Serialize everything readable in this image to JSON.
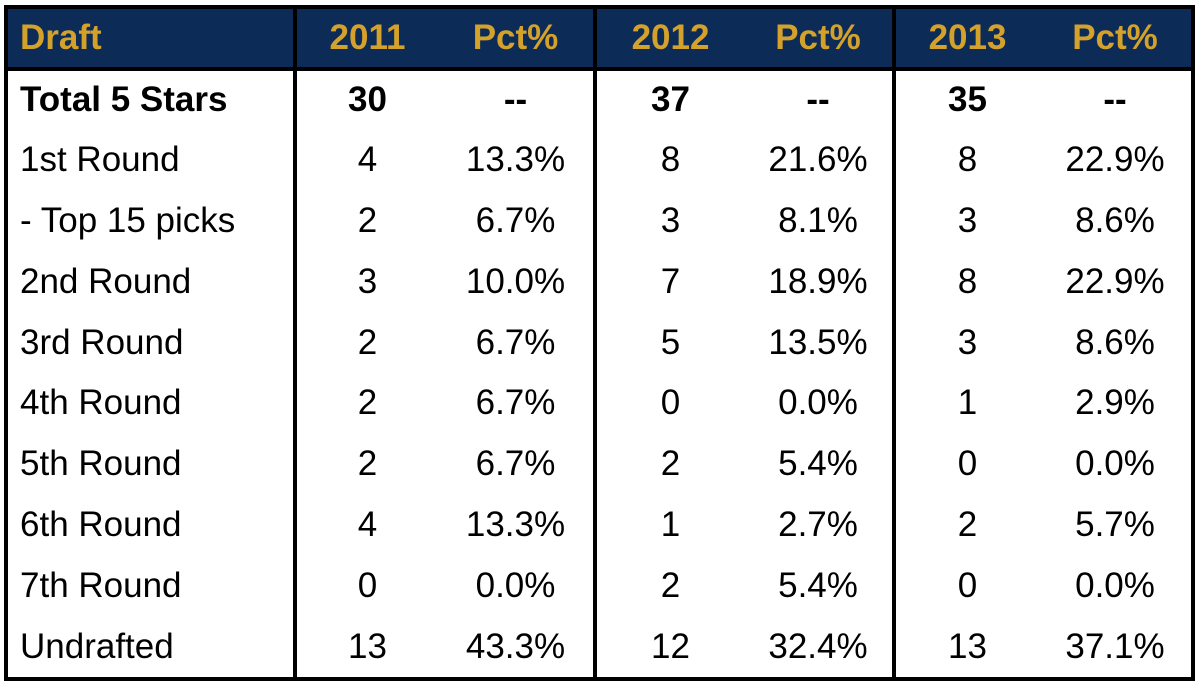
{
  "header": {
    "draft": "Draft",
    "groups": [
      {
        "year": "2011",
        "pct": "Pct%"
      },
      {
        "year": "2012",
        "pct": "Pct%"
      },
      {
        "year": "2013",
        "pct": "Pct%"
      }
    ]
  },
  "rows": [
    {
      "label": "Total 5 Stars",
      "cells": [
        "30",
        "--",
        "37",
        "--",
        "35",
        "--"
      ]
    },
    {
      "label": "1st Round",
      "cells": [
        "4",
        "13.3%",
        "8",
        "21.6%",
        "8",
        "22.9%"
      ]
    },
    {
      "label": "- Top 15 picks",
      "cells": [
        "2",
        "6.7%",
        "3",
        "8.1%",
        "3",
        "8.6%"
      ]
    },
    {
      "label": "2nd Round",
      "cells": [
        "3",
        "10.0%",
        "7",
        "18.9%",
        "8",
        "22.9%"
      ]
    },
    {
      "label": "3rd Round",
      "cells": [
        "2",
        "6.7%",
        "5",
        "13.5%",
        "3",
        "8.6%"
      ]
    },
    {
      "label": "4th Round",
      "cells": [
        "2",
        "6.7%",
        "0",
        "0.0%",
        "1",
        "2.9%"
      ]
    },
    {
      "label": "5th Round",
      "cells": [
        "2",
        "6.7%",
        "2",
        "5.4%",
        "0",
        "0.0%"
      ]
    },
    {
      "label": "6th Round",
      "cells": [
        "4",
        "13.3%",
        "1",
        "2.7%",
        "2",
        "5.7%"
      ]
    },
    {
      "label": "7th Round",
      "cells": [
        "0",
        "0.0%",
        "2",
        "5.4%",
        "0",
        "0.0%"
      ]
    },
    {
      "label": "Undrafted",
      "cells": [
        "13",
        "43.3%",
        "12",
        "32.4%",
        "13",
        "37.1%"
      ]
    }
  ],
  "colors": {
    "header_bg": "#0d2b57",
    "header_text": "#d4a22b",
    "border": "#000000"
  }
}
